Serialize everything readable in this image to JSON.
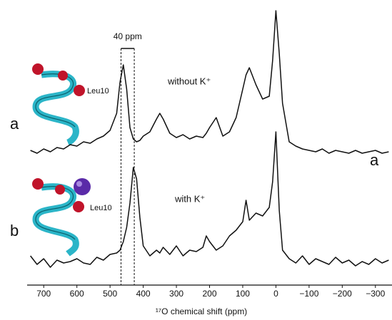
{
  "chart_data": {
    "type": "line",
    "xlabel": "¹⁷O chemical shift (ppm)",
    "xlim": [
      750,
      -350
    ],
    "xticks": [
      700,
      600,
      500,
      400,
      300,
      200,
      100,
      0,
      {
        "value": -100,
        "label": "−100"
      },
      {
        "value": -200,
        "label": "−200"
      },
      {
        "value": -300,
        "label": "−300"
      }
    ],
    "ylim": [
      0,
      100
    ],
    "guides": [
      467,
      427
    ],
    "guide_label": "40 ppm",
    "annotations": [
      "a",
      "b",
      "without K⁺",
      "with K⁺",
      "Leu10",
      "Leu10",
      "a"
    ],
    "x": [
      740,
      720,
      700,
      680,
      660,
      640,
      620,
      600,
      580,
      560,
      540,
      520,
      500,
      480,
      470,
      460,
      450,
      440,
      430,
      420,
      410,
      400,
      380,
      360,
      350,
      340,
      320,
      300,
      280,
      260,
      240,
      220,
      210,
      200,
      180,
      160,
      140,
      120,
      100,
      90,
      80,
      60,
      40,
      20,
      10,
      0,
      -10,
      -20,
      -40,
      -60,
      -80,
      -100,
      -120,
      -140,
      -160,
      -180,
      -200,
      -220,
      -240,
      -260,
      -280,
      -300,
      -320,
      -340
    ],
    "series": [
      {
        "name": "without K⁺",
        "color": "#111111",
        "values": [
          2,
          0,
          3,
          1,
          4,
          3,
          6,
          5,
          8,
          7,
          10,
          12,
          16,
          28,
          50,
          62,
          45,
          18,
          10,
          8,
          9,
          12,
          15,
          24,
          28,
          24,
          14,
          11,
          13,
          10,
          12,
          11,
          14,
          18,
          25,
          12,
          15,
          25,
          45,
          55,
          60,
          48,
          38,
          40,
          65,
          100,
          70,
          35,
          8,
          5,
          3,
          2,
          1,
          3,
          0,
          2,
          1,
          0,
          2,
          0,
          1,
          2,
          0,
          1
        ]
      },
      {
        "name": "with K⁺",
        "color": "#111111",
        "values": [
          8,
          2,
          6,
          0,
          5,
          3,
          4,
          6,
          3,
          2,
          7,
          5,
          9,
          10,
          12,
          18,
          28,
          45,
          70,
          62,
          35,
          15,
          8,
          12,
          10,
          14,
          9,
          15,
          8,
          12,
          11,
          14,
          22,
          18,
          12,
          15,
          22,
          26,
          32,
          47,
          33,
          38,
          36,
          42,
          60,
          95,
          40,
          12,
          6,
          3,
          8,
          2,
          6,
          4,
          2,
          7,
          3,
          5,
          1,
          4,
          2,
          6,
          3,
          5
        ]
      }
    ]
  }
}
